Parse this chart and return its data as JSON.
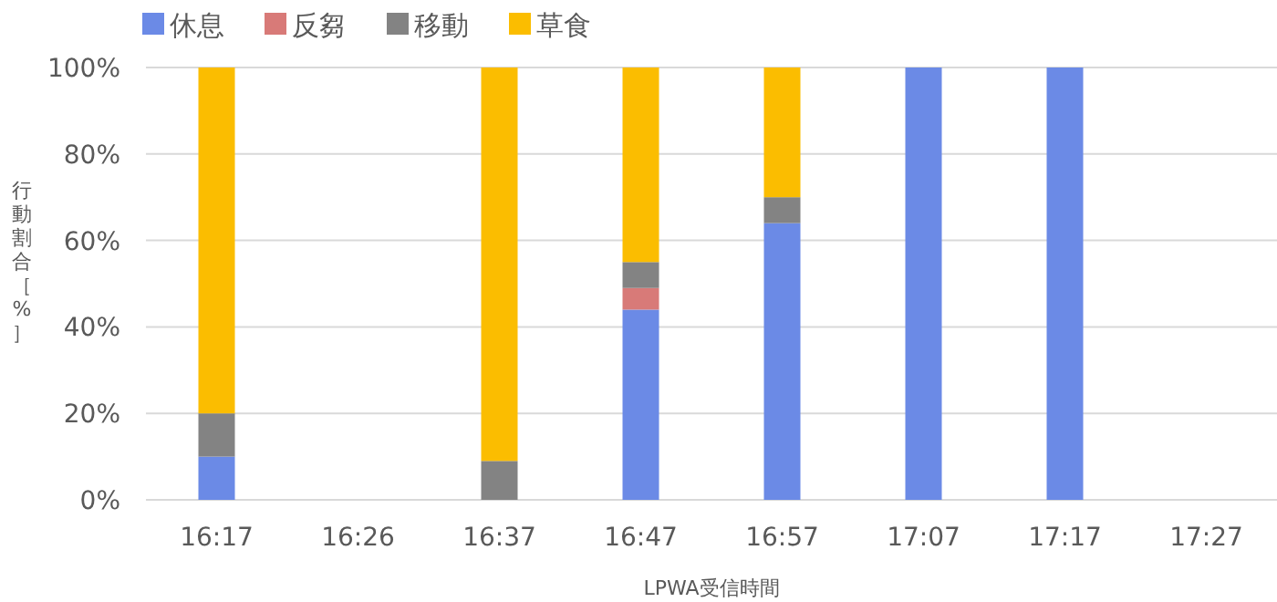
{
  "chart_data": {
    "type": "bar",
    "stacked": true,
    "xlabel": "LPWA受信時間",
    "ylabel": "行動割合［%］",
    "categories": [
      "16:17",
      "16:26",
      "16:37",
      "16:47",
      "16:57",
      "17:07",
      "17:17",
      "17:27"
    ],
    "series": [
      {
        "name": "休息",
        "color": "#6b8ae6",
        "values": [
          10,
          null,
          0,
          44,
          64,
          100,
          100,
          null
        ]
      },
      {
        "name": "反芻",
        "color": "#d87a78",
        "values": [
          0,
          null,
          0,
          5,
          0,
          0,
          0,
          null
        ]
      },
      {
        "name": "移動",
        "color": "#838383",
        "values": [
          10,
          null,
          9,
          6,
          6,
          0,
          0,
          null
        ]
      },
      {
        "name": "草食",
        "color": "#fbbd00",
        "values": [
          80,
          null,
          91,
          45,
          30,
          0,
          0,
          null
        ]
      }
    ],
    "ylim": [
      0,
      100
    ],
    "yticks": [
      {
        "value": 0,
        "label": "0%"
      },
      {
        "value": 20,
        "label": "20%"
      },
      {
        "value": 40,
        "label": "40%"
      },
      {
        "value": 60,
        "label": "60%"
      },
      {
        "value": 80,
        "label": "80%"
      },
      {
        "value": 100,
        "label": "100%"
      }
    ],
    "grid": "y",
    "legend": "top left"
  }
}
